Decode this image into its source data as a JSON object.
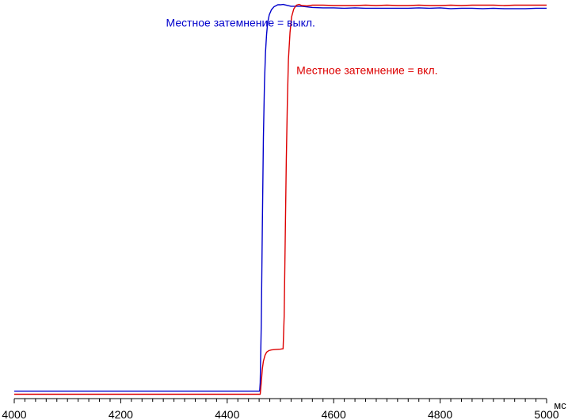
{
  "chart_data": {
    "type": "line",
    "title": "",
    "xlabel": "",
    "ylabel": "",
    "x_unit": "мс",
    "xlim": [
      4000,
      5000
    ],
    "ylim": [
      0,
      100
    ],
    "x_ticks": [
      4000,
      4200,
      4400,
      4600,
      4800,
      5000
    ],
    "x_tick_labels": [
      "4000",
      "4200",
      "4400",
      "4600",
      "4800",
      "5000"
    ],
    "grid": false,
    "series": [
      {
        "name": "Местное затемнение = выкл.",
        "color": "#0000cc",
        "x": [
          4000,
          4461,
          4462,
          4464,
          4466,
          4468,
          4470,
          4472,
          4474,
          4476,
          4479,
          4483,
          4488,
          4495,
          4500,
          4505,
          4520,
          4540,
          4560,
          4580,
          4600,
          4620,
          4640,
          4660,
          4680,
          4700,
          4720,
          4740,
          4760,
          4780,
          4800,
          4820,
          4840,
          4860,
          4880,
          4900,
          4920,
          4940,
          4960,
          4980,
          5000
        ],
        "y": [
          0.8,
          0.8,
          3,
          18,
          43,
          66,
          80,
          88,
          92.5,
          95.5,
          97.5,
          98.8,
          99.6,
          100.1,
          100.1,
          100.2,
          99.7,
          99.7,
          99.4,
          99.3,
          99.3,
          99.2,
          99.3,
          99.2,
          99.2,
          99.2,
          99.2,
          99.2,
          99.3,
          99.2,
          99.3,
          99.1,
          99.2,
          99.2,
          99.1,
          99.2,
          99.1,
          99.1,
          99.1,
          99.2,
          99.2
        ]
      },
      {
        "name": "Местное затемнение = вкл.",
        "color": "#dd0000",
        "x": [
          4000,
          4462,
          4464,
          4466,
          4468,
          4471,
          4474,
          4478,
          4483,
          4490,
          4500,
          4505,
          4507,
          4509,
          4511,
          4513,
          4515,
          4518,
          4521,
          4525,
          4530,
          4535,
          4540,
          4550,
          4560,
          4580,
          4600,
          4620,
          4640,
          4660,
          4680,
          4700,
          4720,
          4740,
          4760,
          4780,
          4800,
          4820,
          4840,
          4860,
          4880,
          4900,
          4920,
          4940,
          4960,
          4980,
          5000
        ],
        "y": [
          0,
          0,
          3,
          6.5,
          8.5,
          10,
          10.8,
          11.2,
          11.4,
          11.5,
          11.6,
          11.7,
          20,
          40,
          60,
          75,
          86,
          93,
          97,
          99,
          100,
          100.2,
          99.9,
          99.8,
          100,
          100,
          99.9,
          99.9,
          99.9,
          100,
          99.9,
          100,
          99.9,
          99.9,
          100,
          99.9,
          99.9,
          100,
          99.9,
          100,
          100,
          100,
          99.9,
          100,
          100,
          100,
          100
        ]
      }
    ],
    "annotations": [
      {
        "text": "Местное затемнение = выкл.",
        "color": "#0000cc",
        "x": 4285,
        "y": 94.5
      },
      {
        "text": "Местное затемнение = вкл.",
        "color": "#dd0000",
        "x": 4530,
        "y": 82.3
      }
    ]
  }
}
